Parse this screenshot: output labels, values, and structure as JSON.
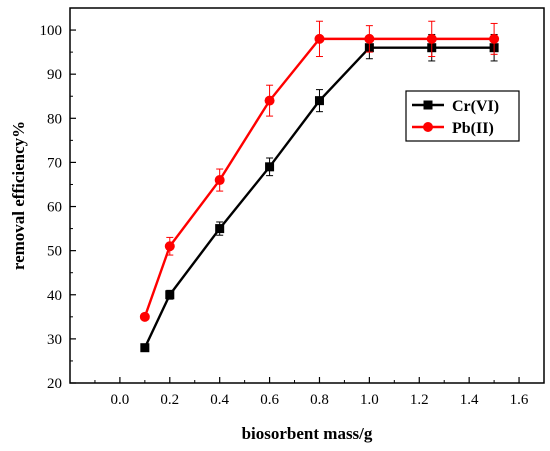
{
  "chart_data": {
    "type": "line",
    "xlabel": "biosorbent mass/g",
    "ylabel": "removal efficiency%",
    "xlim": [
      -0.2,
      1.7
    ],
    "ylim": [
      20,
      105
    ],
    "x_ticks": [
      "0.0",
      "0.2",
      "0.4",
      "0.6",
      "0.8",
      "1.0",
      "1.2",
      "1.4",
      "1.6"
    ],
    "y_ticks": [
      "20",
      "30",
      "40",
      "50",
      "60",
      "70",
      "80",
      "90",
      "100"
    ],
    "legend_position": "upper-right",
    "grid": false,
    "series": [
      {
        "name": "Cr(VI)",
        "color": "#000000",
        "marker": "square",
        "x": [
          0.1,
          0.2,
          0.4,
          0.6,
          0.8,
          1.0,
          1.25,
          1.5
        ],
        "y": [
          28,
          40,
          55,
          69,
          84,
          96,
          96,
          96
        ],
        "error": [
          0,
          1,
          1.5,
          2,
          2.5,
          2.5,
          3,
          3
        ]
      },
      {
        "name": "Pb(II)",
        "color": "#ff0000",
        "marker": "circle",
        "x": [
          0.1,
          0.2,
          0.4,
          0.6,
          0.8,
          1.0,
          1.25,
          1.5
        ],
        "y": [
          35,
          51,
          66,
          84,
          98,
          98,
          98,
          98
        ],
        "error": [
          0,
          2,
          2.5,
          3.5,
          4,
          3,
          4,
          3.5
        ]
      }
    ]
  }
}
